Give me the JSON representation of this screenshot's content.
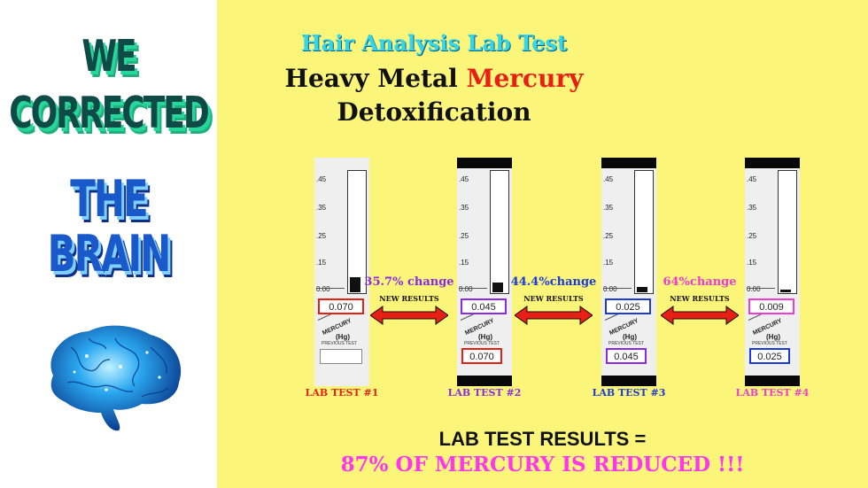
{
  "left": {
    "line1": "WE",
    "line2": "CORRECTED",
    "line3": "THE",
    "line4": "BRAIN"
  },
  "header": {
    "title": "Hair Analysis Lab Test",
    "line2_pre": "Heavy Metal ",
    "line2_red": "Mercury",
    "line3": "Detoxification"
  },
  "ticks": [
    ".45",
    ".35",
    ".25",
    ".15",
    "0.00"
  ],
  "chart_labels": {
    "mercury": "MERCURY",
    "hg": "(Hg)",
    "previous": "PREVIOUS TEST"
  },
  "tests": [
    {
      "label": "LAB TEST #1",
      "current": "0.070",
      "previous": "",
      "color": "#e81f14"
    },
    {
      "label": "LAB TEST #2",
      "current": "0.045",
      "previous": "0.070",
      "color": "#8a2be2"
    },
    {
      "label": "LAB TEST #3",
      "current": "0.025",
      "previous": "0.045",
      "color": "#1b3bd6"
    },
    {
      "label": "LAB TEST #4",
      "current": "0.009",
      "previous": "0.025",
      "color": "#ee3bd0"
    }
  ],
  "changes": [
    {
      "text": "35.7% change",
      "sub": "NEW RESULTS",
      "color": "#8a2be2"
    },
    {
      "text": "44.4%change",
      "sub": "NEW RESULTS",
      "color": "#1b3bd6"
    },
    {
      "text": "64%change",
      "sub": "NEW RESULTS",
      "color": "#ee3bd0"
    }
  ],
  "results": {
    "line1": "LAB TEST RESULTS =",
    "line2": "87% OF MERCURY IS REDUCED !!!"
  },
  "colors": {
    "background": "#fbf57a",
    "arrow": "#e81f14",
    "title": "#33d7ea"
  }
}
